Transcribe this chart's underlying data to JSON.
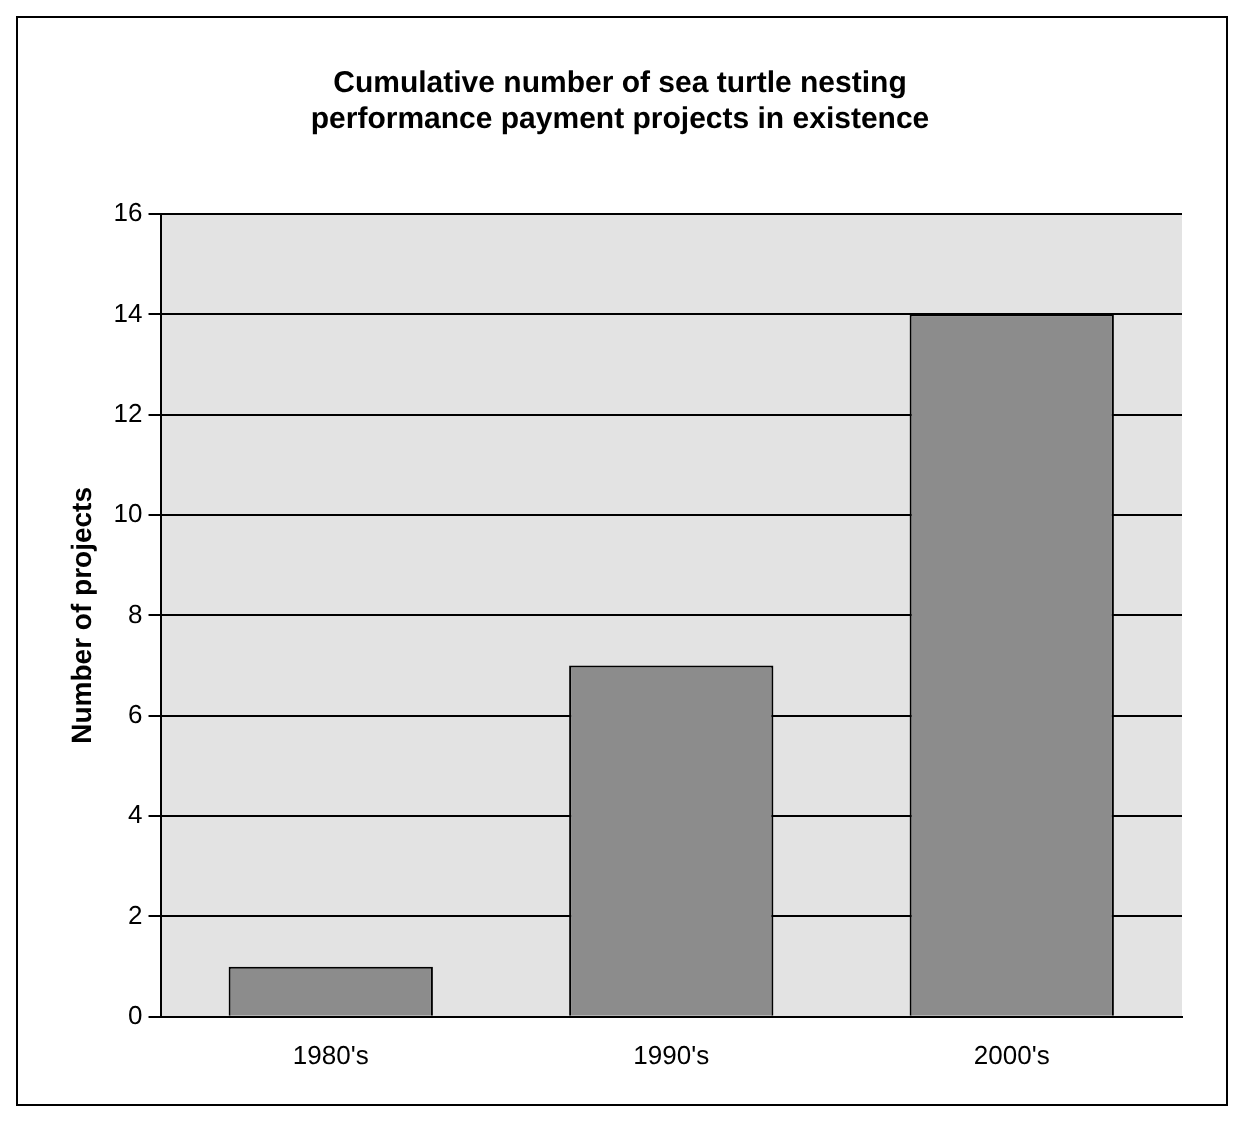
{
  "chart_data": {
    "type": "bar",
    "title": "Cumulative number of sea turtle nesting\nperformance payment projects in existence",
    "ylabel": "Number of projects",
    "categories": [
      "1980's",
      "1990's",
      "2000's"
    ],
    "values": [
      1,
      7,
      14
    ],
    "color": "#8c8c8c",
    "ylim": [
      0,
      16
    ],
    "yticks": [
      0,
      2,
      4,
      6,
      8,
      10,
      12,
      14,
      16
    ],
    "grid": "y"
  }
}
